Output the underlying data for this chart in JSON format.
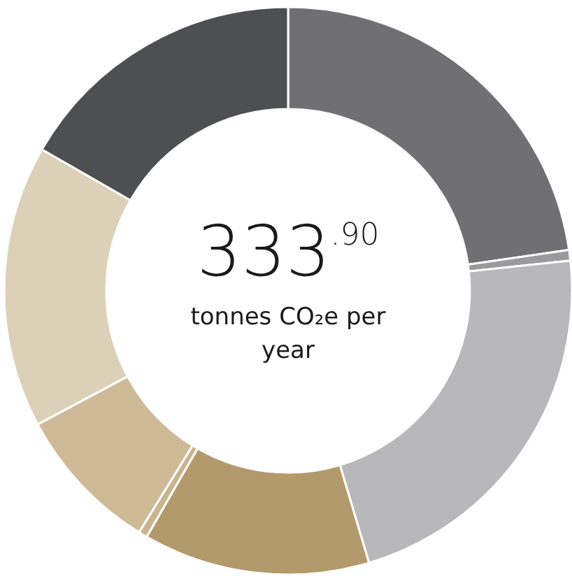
{
  "chart_data": {
    "type": "donut",
    "title": "333$^{.90}$",
    "subtitle": "tonnes CO₂e per year",
    "categories": [
      null,
      null,
      null,
      null,
      null,
      null,
      null,
      null
    ],
    "values": [
      22.7,
      0.6,
      22.1,
      12.9,
      0.5,
      8.4,
      16.1,
      16.7
    ],
    "colors": [
      "#706f73",
      "#9a999c",
      "#b8b7b9",
      "#b39a6c",
      "#c9b48f",
      "#cfba98",
      "#ddd0b9",
      "#4e4f53"
    ],
    "legend": false
  }
}
